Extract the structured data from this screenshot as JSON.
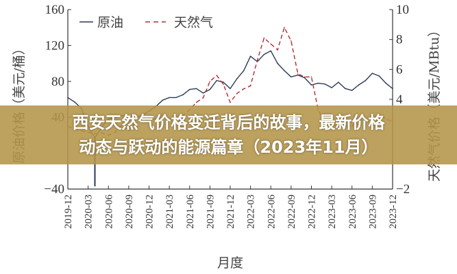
{
  "chart_data": {
    "type": "line",
    "xlabel": "月度",
    "ylabel_left": "原油价格（美元/桶）",
    "ylabel_right": "天然气价格（美元/MBtu）",
    "ylim_left": [
      -40,
      160
    ],
    "ylim_right": [
      -2,
      10
    ],
    "yticks_left": [
      "-40",
      "40",
      "80",
      "120",
      "160"
    ],
    "yticks_right": [
      "-2",
      "4",
      "6",
      "8",
      "10"
    ],
    "xticks": [
      "2019-12",
      "2020-03",
      "2020-06",
      "2020-09",
      "2020-12",
      "2021-03",
      "2021-06",
      "2021-09",
      "2021-12",
      "2022-03",
      "2022-06",
      "2022-09",
      "2022-12",
      "2023-03",
      "2023-06",
      "2023-09",
      "2023-12"
    ],
    "x": [
      "2019-12",
      "2020-01",
      "2020-02",
      "2020-03",
      "2020-04",
      "2020-05",
      "2020-06",
      "2020-07",
      "2020-08",
      "2020-09",
      "2020-10",
      "2020-11",
      "2020-12",
      "2021-01",
      "2021-02",
      "2021-03",
      "2021-04",
      "2021-05",
      "2021-06",
      "2021-07",
      "2021-08",
      "2021-09",
      "2021-10",
      "2021-11",
      "2021-12",
      "2022-01",
      "2022-02",
      "2022-03",
      "2022-04",
      "2022-05",
      "2022-06",
      "2022-07",
      "2022-08",
      "2022-09",
      "2022-10",
      "2022-11",
      "2022-12",
      "2023-01",
      "2023-02",
      "2023-03",
      "2023-04",
      "2023-05",
      "2023-06",
      "2023-07",
      "2023-08",
      "2023-09",
      "2023-10",
      "2023-11",
      "2023-12"
    ],
    "series": [
      {
        "name": "原油",
        "axis": "left",
        "color": "#2b3a55",
        "style": "solid",
        "values": [
          62,
          57,
          50,
          30,
          17,
          29,
          38,
          40,
          42,
          40,
          40,
          42,
          47,
          52,
          59,
          62,
          62,
          65,
          71,
          72,
          67,
          71,
          81,
          79,
          72,
          83,
          92,
          108,
          102,
          110,
          114,
          100,
          92,
          85,
          87,
          84,
          76,
          78,
          77,
          73,
          79,
          72,
          70,
          76,
          81,
          89,
          86,
          78,
          72
        ],
        "spike": {
          "date": "2020-04",
          "value": -37
        }
      },
      {
        "name": "天然气",
        "axis": "right",
        "color": "#b22a33",
        "style": "dashed",
        "values": [
          2.2,
          2.0,
          1.9,
          1.8,
          1.7,
          1.75,
          1.6,
          1.8,
          2.3,
          1.9,
          2.4,
          2.6,
          2.6,
          2.7,
          3.0,
          2.6,
          2.7,
          2.9,
          3.3,
          3.8,
          4.1,
          5.2,
          5.6,
          5.0,
          3.8,
          4.4,
          4.7,
          4.9,
          6.6,
          8.1,
          7.7,
          7.3,
          8.8,
          7.9,
          5.7,
          5.5,
          5.5,
          3.3,
          2.4,
          2.3,
          2.2,
          2.2,
          2.2,
          2.6,
          2.6,
          2.6,
          3.0,
          2.7,
          2.5
        ]
      }
    ],
    "legend": "top-left",
    "grid": false
  },
  "banner": {
    "line1": "西安天然气价格变迁背后的故事，最新价格",
    "line2": "动态与跃动的能源篇章（2023年11月）"
  }
}
